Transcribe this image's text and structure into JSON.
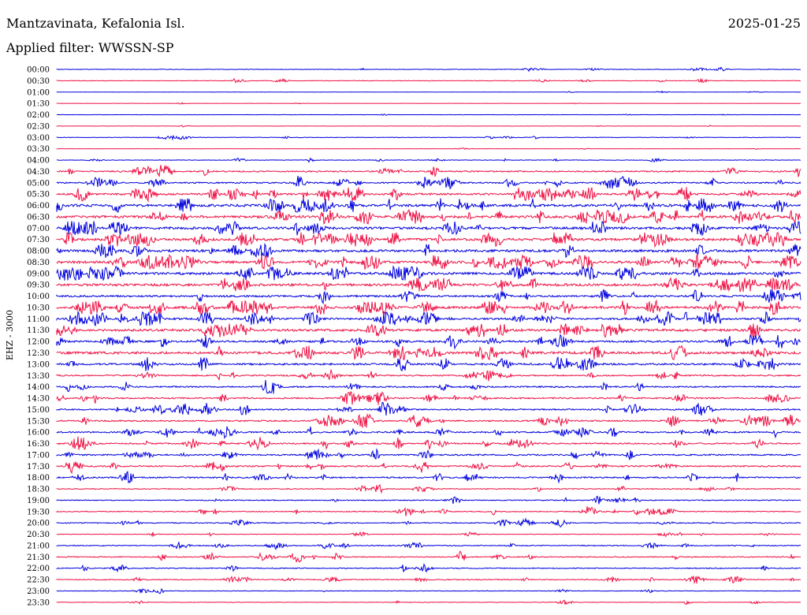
{
  "header": {
    "station": "Mantzavinata, Kefalonia Isl.",
    "date": "2025-01-25",
    "filter": "Applied filter: WWSSN-SP"
  },
  "colors": {
    "trace_a": "#0000dd",
    "trace_b": "#ee1144"
  },
  "chart_data": {
    "type": "line",
    "title": "Mantzavinata, Kefalonia Isl.",
    "subtitle": "Applied filter: WWSSN-SP",
    "ylabel": "EHZ - 3000",
    "grid": false,
    "legend": "none",
    "series": [
      {
        "label": "00:00",
        "level": 1
      },
      {
        "label": "00:30",
        "level": 1
      },
      {
        "label": "01:00",
        "level": 0
      },
      {
        "label": "01:30",
        "level": 0
      },
      {
        "label": "02:00",
        "level": 0
      },
      {
        "label": "02:30",
        "level": 0
      },
      {
        "label": "03:00",
        "level": 1
      },
      {
        "label": "03:30",
        "level": 0
      },
      {
        "label": "04:00",
        "level": 1
      },
      {
        "label": "04:30",
        "level": 3
      },
      {
        "label": "05:00",
        "level": 3
      },
      {
        "label": "05:30",
        "level": 4
      },
      {
        "label": "06:00",
        "level": 5
      },
      {
        "label": "06:30",
        "level": 5
      },
      {
        "label": "07:00",
        "level": 5
      },
      {
        "label": "07:30",
        "level": 5
      },
      {
        "label": "08:00",
        "level": 5
      },
      {
        "label": "08:30",
        "level": 5
      },
      {
        "label": "09:00",
        "level": 5
      },
      {
        "label": "09:30",
        "level": 5
      },
      {
        "label": "10:00",
        "level": 4
      },
      {
        "label": "10:30",
        "level": 5
      },
      {
        "label": "11:00",
        "level": 4
      },
      {
        "label": "11:30",
        "level": 5
      },
      {
        "label": "12:00",
        "level": 4
      },
      {
        "label": "12:30",
        "level": 5
      },
      {
        "label": "13:00",
        "level": 4
      },
      {
        "label": "13:30",
        "level": 3
      },
      {
        "label": "14:00",
        "level": 3
      },
      {
        "label": "14:30",
        "level": 3
      },
      {
        "label": "15:00",
        "level": 3
      },
      {
        "label": "15:30",
        "level": 3
      },
      {
        "label": "16:00",
        "level": 3
      },
      {
        "label": "16:30",
        "level": 3
      },
      {
        "label": "17:00",
        "level": 3
      },
      {
        "label": "17:30",
        "level": 3
      },
      {
        "label": "18:00",
        "level": 3
      },
      {
        "label": "18:30",
        "level": 2
      },
      {
        "label": "19:00",
        "level": 2
      },
      {
        "label": "19:30",
        "level": 2
      },
      {
        "label": "20:00",
        "level": 2
      },
      {
        "label": "20:30",
        "level": 1
      },
      {
        "label": "21:00",
        "level": 2
      },
      {
        "label": "21:30",
        "level": 2
      },
      {
        "label": "22:00",
        "level": 2
      },
      {
        "label": "22:30",
        "level": 2
      },
      {
        "label": "23:00",
        "level": 1
      },
      {
        "label": "23:30",
        "level": 1
      }
    ]
  }
}
